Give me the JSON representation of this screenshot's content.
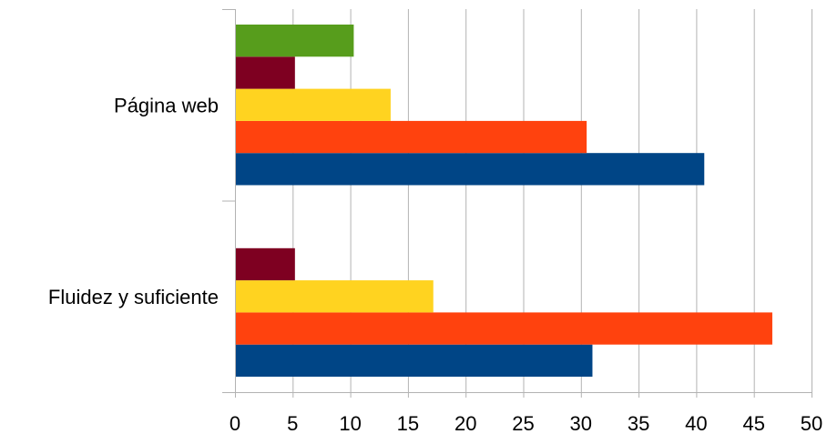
{
  "chart_data": {
    "type": "bar",
    "orientation": "horizontal",
    "categories": [
      "Fluidez y suficiente",
      "Página web"
    ],
    "series": [
      {
        "color": "#004586",
        "values": [
          31,
          40.7
        ]
      },
      {
        "color": "#ff420e",
        "values": [
          46.6,
          30.5
        ]
      },
      {
        "color": "#ffd320",
        "values": [
          17.2,
          13.5
        ]
      },
      {
        "color": "#7e0021",
        "values": [
          5.2,
          5.2
        ]
      },
      {
        "color": "#579d1c",
        "values": [
          null,
          10.3
        ]
      }
    ],
    "xlim": [
      0,
      50
    ],
    "xticks": [
      "0",
      "5",
      "10",
      "15",
      "20",
      "25",
      "30",
      "35",
      "40",
      "45",
      "50"
    ],
    "grid": true,
    "gridColor": "#b3b3b3"
  }
}
